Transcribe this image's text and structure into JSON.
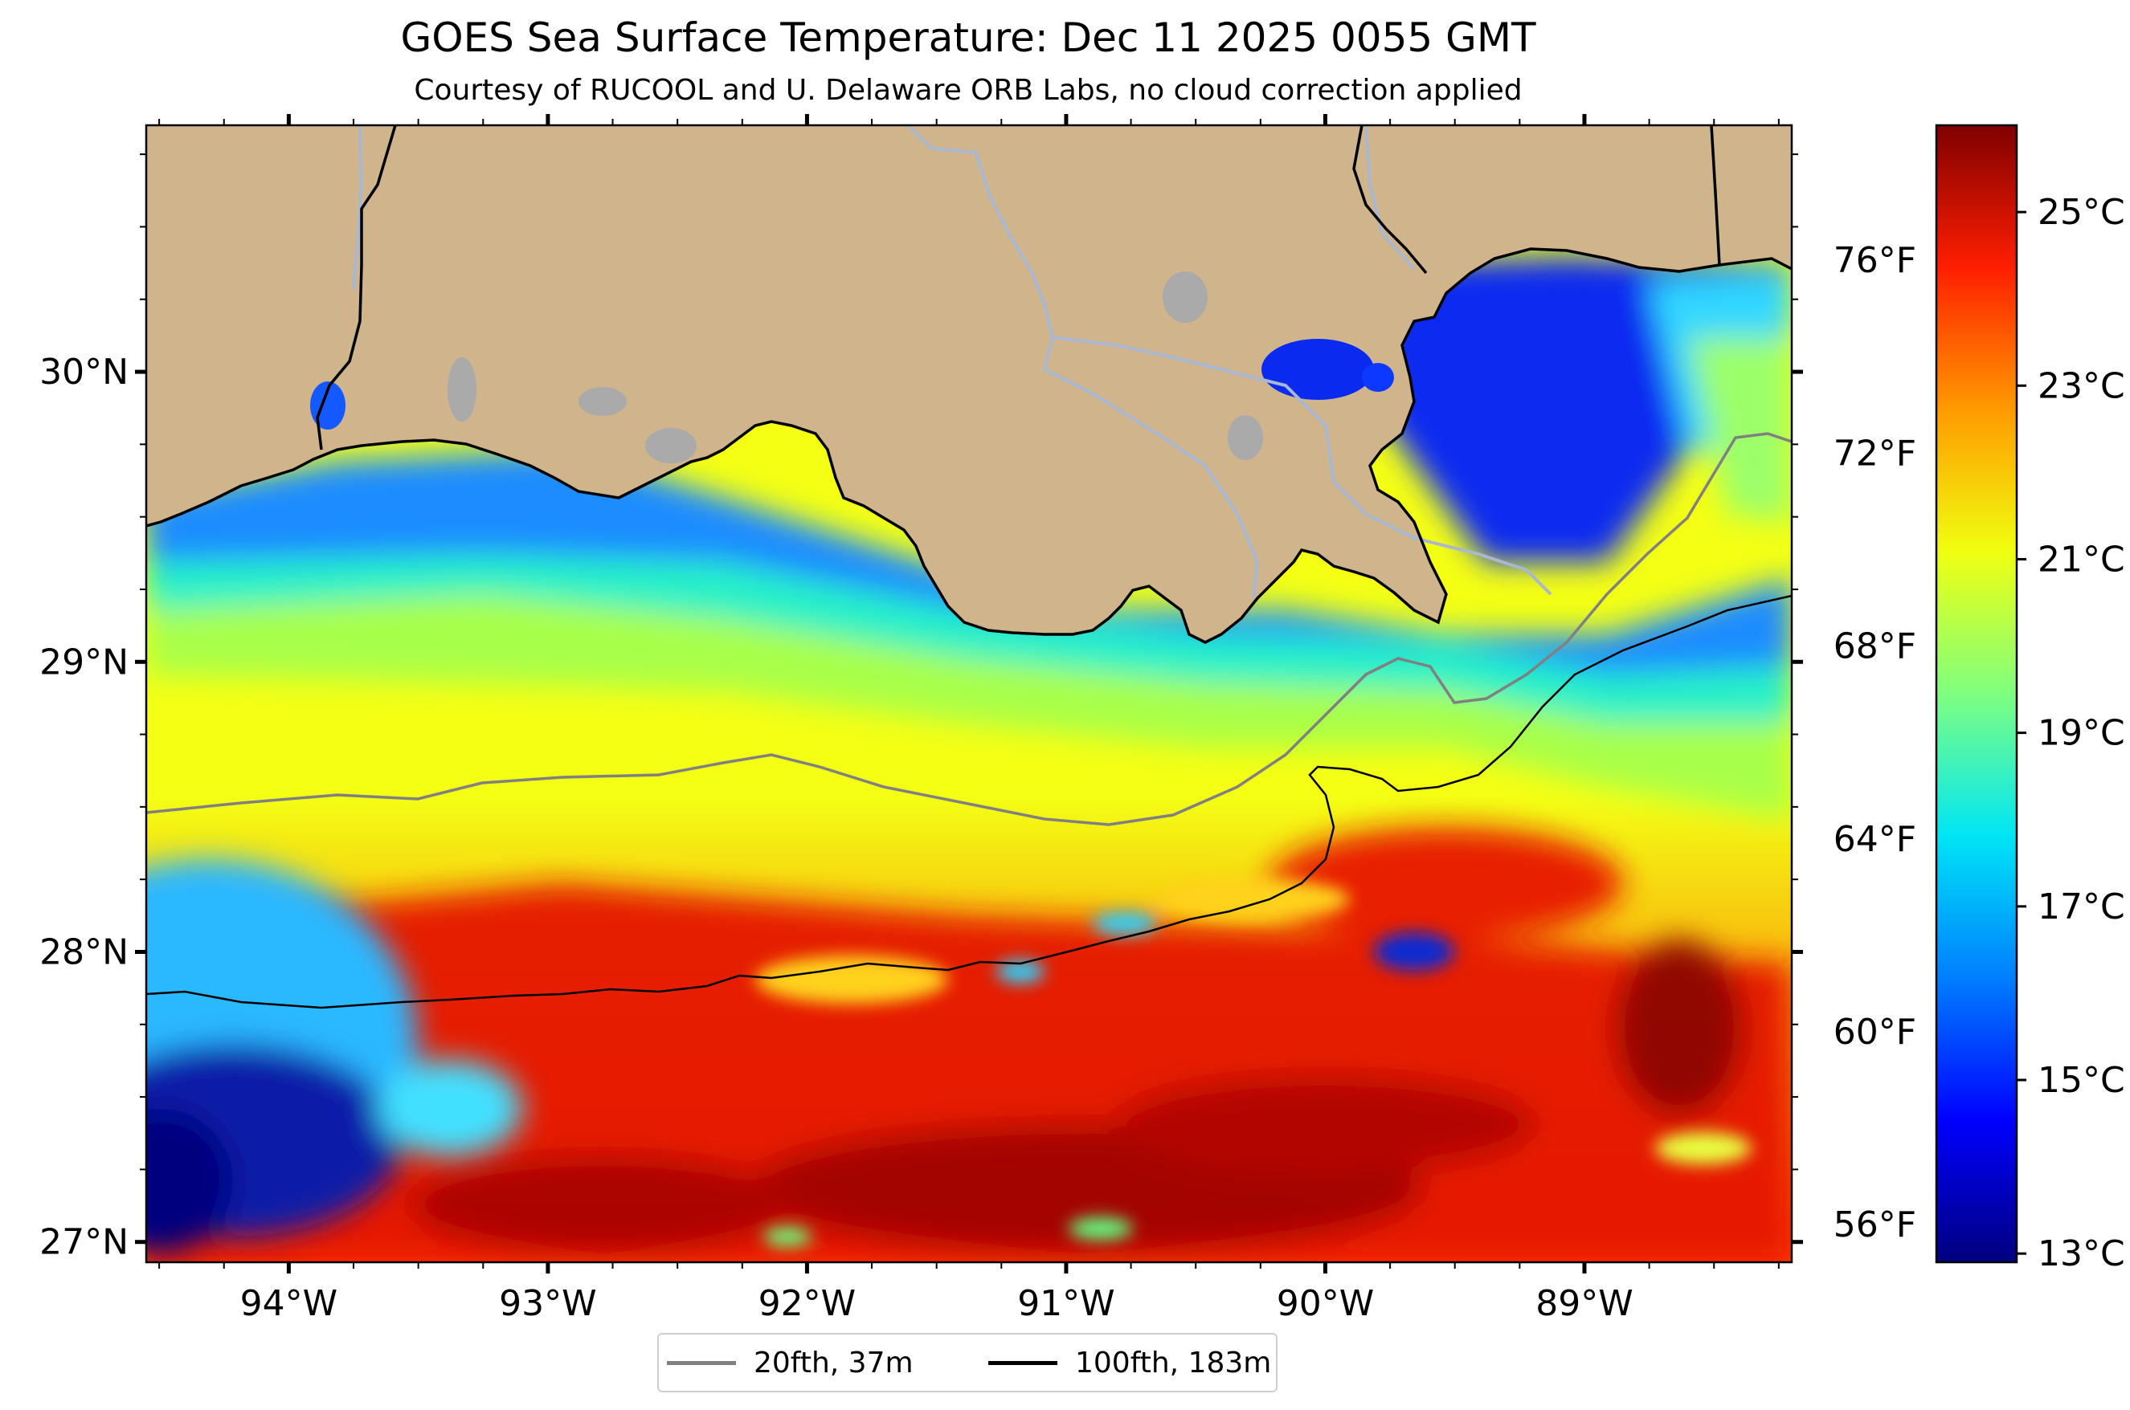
{
  "title": "GOES Sea Surface Temperature: Dec 11 2025 0055 GMT",
  "subtitle": "Courtesy of RUCOOL and U. Delaware ORB Labs, no cloud correction applied",
  "map": {
    "extent": {
      "lon_min": -94.55,
      "lon_max": -88.2,
      "lat_min": 26.93,
      "lat_max": 30.85
    },
    "land_color": "#cfb48c",
    "lake_color": "#aaaaaa",
    "river_color": "#a9b8d0",
    "coast_color": "#000000",
    "lon_ticks": [
      {
        "value": -94,
        "label": "94°W"
      },
      {
        "value": -93,
        "label": "93°W"
      },
      {
        "value": -92,
        "label": "92°W"
      },
      {
        "value": -91,
        "label": "91°W"
      },
      {
        "value": -90,
        "label": "90°W"
      },
      {
        "value": -89,
        "label": "89°W"
      }
    ],
    "lat_ticks": [
      {
        "value": 27,
        "label": "27°N"
      },
      {
        "value": 28,
        "label": "28°N"
      },
      {
        "value": 29,
        "label": "29°N"
      },
      {
        "value": 30,
        "label": "30°N"
      }
    ],
    "fahrenheit_ticks": [
      {
        "value": 56,
        "label": "56°F"
      },
      {
        "value": 60,
        "label": "60°F"
      },
      {
        "value": 64,
        "label": "64°F"
      },
      {
        "value": 68,
        "label": "68°F"
      },
      {
        "value": 72,
        "label": "72°F"
      },
      {
        "value": 76,
        "label": "76°F"
      }
    ]
  },
  "colorbar": {
    "min_c": 12.9,
    "max_c": 26.0,
    "colors": [
      "#00007f",
      "#0000ff",
      "#007fff",
      "#00e5f5",
      "#7fff7f",
      "#f0ff10",
      "#ff9a00",
      "#ff1e00",
      "#7f0000"
    ],
    "ticks": [
      {
        "value": 13,
        "label": "13°C"
      },
      {
        "value": 15,
        "label": "15°C"
      },
      {
        "value": 17,
        "label": "17°C"
      },
      {
        "value": 19,
        "label": "19°C"
      },
      {
        "value": 21,
        "label": "21°C"
      },
      {
        "value": 23,
        "label": "23°C"
      },
      {
        "value": 25,
        "label": "25°C"
      }
    ]
  },
  "legend": {
    "items": [
      {
        "label": "20fth, 37m",
        "color": "#808080"
      },
      {
        "label": "100fth, 183m",
        "color": "#000000"
      }
    ]
  }
}
